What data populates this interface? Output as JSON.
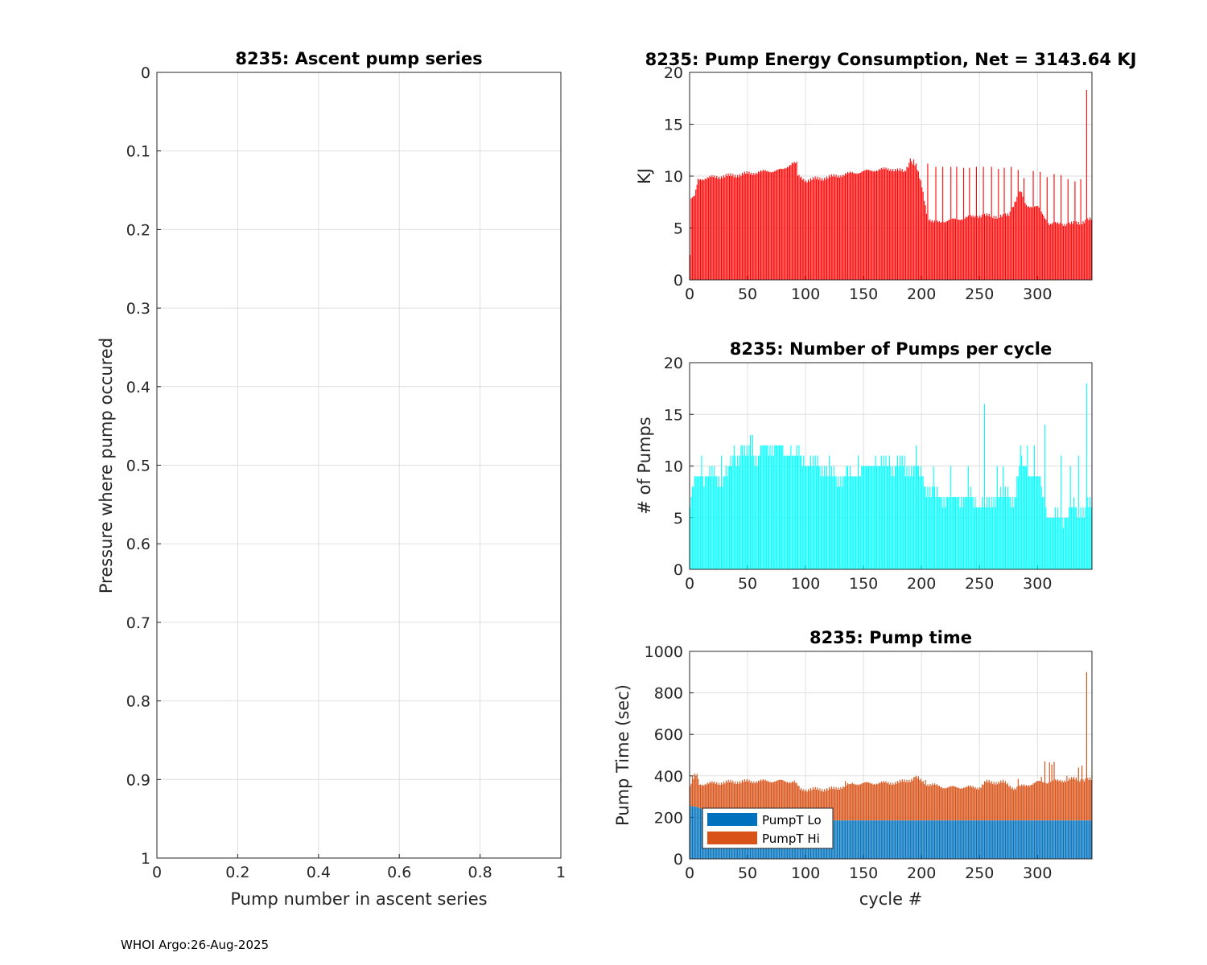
{
  "footer": {
    "text": "WHOI Argo:26-Aug-2025"
  },
  "colors": {
    "energy": "#ff0000",
    "pumps": "#00ffff",
    "lo": "#0072bd",
    "hi": "#d95319"
  },
  "chart_data": [
    {
      "id": "ascent",
      "type": "line",
      "title": "8235: Ascent pump series",
      "xlabel": "Pump number in ascent series",
      "ylabel": "Pressure where pump occured",
      "xlim": [
        0,
        1
      ],
      "ylim": [
        0,
        1
      ],
      "y_reversed": true,
      "xticks": [
        "0",
        "0.2",
        "0.4",
        "0.6",
        "0.8",
        "1"
      ],
      "yticks": [
        "0",
        "0.1",
        "0.2",
        "0.3",
        "0.4",
        "0.5",
        "0.6",
        "0.7",
        "0.8",
        "0.9",
        "1"
      ],
      "series": []
    },
    {
      "id": "energy",
      "type": "bar",
      "title": "8235: Pump Energy Consumption,  Net = 3143.64 KJ",
      "xlabel": "",
      "ylabel": "KJ",
      "xlim": [
        0,
        347
      ],
      "ylim": [
        0,
        20
      ],
      "xticks": [
        "0",
        "50",
        "100",
        "150",
        "200",
        "250",
        "300"
      ],
      "yticks": [
        "0",
        "5",
        "10",
        "15",
        "20"
      ],
      "profile": [
        [
          0,
          2.4
        ],
        [
          1,
          7.8
        ],
        [
          4,
          8.0
        ],
        [
          7,
          9.7
        ],
        [
          20,
          9.9
        ],
        [
          40,
          10.1
        ],
        [
          60,
          10.4
        ],
        [
          80,
          10.6
        ],
        [
          88,
          11.3
        ],
        [
          92,
          11.2
        ],
        [
          93,
          10.0
        ],
        [
          100,
          9.6
        ],
        [
          120,
          9.9
        ],
        [
          140,
          10.3
        ],
        [
          160,
          10.6
        ],
        [
          175,
          10.7
        ],
        [
          185,
          10.4
        ],
        [
          190,
          11.5
        ],
        [
          195,
          11.0
        ],
        [
          200,
          9.0
        ],
        [
          205,
          6.0
        ],
        [
          210,
          5.5
        ],
        [
          250,
          6.2
        ],
        [
          270,
          6.1
        ],
        [
          275,
          6.3
        ],
        [
          280,
          7.5
        ],
        [
          285,
          8.5
        ],
        [
          290,
          7.2
        ],
        [
          300,
          7.0
        ],
        [
          310,
          5.4
        ],
        [
          330,
          5.4
        ],
        [
          346,
          5.8
        ]
      ],
      "spikes": [
        [
          190,
          11.7
        ],
        [
          193,
          11.6
        ],
        [
          205,
          11.2
        ],
        [
          212,
          10.9
        ],
        [
          218,
          10.9
        ],
        [
          225,
          10.9
        ],
        [
          230,
          10.9
        ],
        [
          236,
          10.8
        ],
        [
          241,
          10.8
        ],
        [
          247,
          10.9
        ],
        [
          253,
          10.9
        ],
        [
          260,
          10.9
        ],
        [
          266,
          10.7
        ],
        [
          271,
          10.8
        ],
        [
          277,
          10.9
        ],
        [
          283,
          10.6
        ],
        [
          288,
          9.8
        ],
        [
          296,
          10.5
        ],
        [
          302,
          10.4
        ],
        [
          308,
          9.9
        ],
        [
          314,
          10.2
        ],
        [
          320,
          10.1
        ],
        [
          326,
          9.7
        ],
        [
          332,
          9.5
        ],
        [
          337,
          9.7
        ],
        [
          342,
          18.3
        ]
      ]
    },
    {
      "id": "pumps",
      "type": "bar",
      "title": "8235: Number of Pumps per cycle",
      "xlabel": "",
      "ylabel": "# of Pumps",
      "xlim": [
        0,
        347
      ],
      "ylim": [
        0,
        20
      ],
      "xticks": [
        "0",
        "50",
        "100",
        "150",
        "200",
        "250",
        "300"
      ],
      "yticks": [
        "0",
        "5",
        "10",
        "15",
        "20"
      ],
      "profile": [
        [
          0,
          6
        ],
        [
          3,
          8
        ],
        [
          6,
          9
        ],
        [
          30,
          9
        ],
        [
          35,
          10
        ],
        [
          45,
          11
        ],
        [
          55,
          11
        ],
        [
          60,
          11
        ],
        [
          70,
          12
        ],
        [
          90,
          11
        ],
        [
          110,
          10
        ],
        [
          125,
          9
        ],
        [
          140,
          9
        ],
        [
          150,
          10
        ],
        [
          165,
          10
        ],
        [
          180,
          10
        ],
        [
          195,
          10
        ],
        [
          205,
          8
        ],
        [
          215,
          7
        ],
        [
          240,
          7
        ],
        [
          255,
          6
        ],
        [
          260,
          7
        ],
        [
          280,
          7
        ],
        [
          285,
          10
        ],
        [
          300,
          9
        ],
        [
          305,
          7
        ],
        [
          310,
          5
        ],
        [
          320,
          5
        ],
        [
          335,
          6
        ],
        [
          346,
          6
        ]
      ],
      "spikes": [
        [
          10,
          11
        ],
        [
          27,
          11
        ],
        [
          38,
          12
        ],
        [
          44,
          12
        ],
        [
          52,
          13
        ],
        [
          54,
          13
        ],
        [
          62,
          12
        ],
        [
          87,
          12
        ],
        [
          95,
          11
        ],
        [
          120,
          11
        ],
        [
          135,
          10
        ],
        [
          145,
          11
        ],
        [
          160,
          11
        ],
        [
          172,
          11
        ],
        [
          195,
          12
        ],
        [
          210,
          10
        ],
        [
          225,
          10
        ],
        [
          240,
          10
        ],
        [
          254,
          16
        ],
        [
          265,
          10
        ],
        [
          270,
          10
        ],
        [
          285,
          12
        ],
        [
          291,
          12
        ],
        [
          297,
          12
        ],
        [
          306,
          14
        ],
        [
          320,
          11
        ],
        [
          328,
          10
        ],
        [
          335,
          11
        ],
        [
          342,
          18
        ]
      ]
    },
    {
      "id": "pumptime",
      "type": "bar",
      "title": "8235: Pump time",
      "xlabel": "cycle #",
      "ylabel": "Pump Time (sec)",
      "xlim": [
        0,
        347
      ],
      "ylim": [
        0,
        1000
      ],
      "xticks": [
        "0",
        "50",
        "100",
        "150",
        "200",
        "250",
        "300"
      ],
      "yticks": [
        "0",
        "200",
        "400",
        "600",
        "800",
        "1000"
      ],
      "legend": [
        "PumpT Lo",
        "PumpT Hi"
      ],
      "lo_profile": [
        [
          0,
          255
        ],
        [
          6,
          250
        ],
        [
          10,
          240
        ],
        [
          50,
          238
        ],
        [
          80,
          235
        ],
        [
          95,
          220
        ],
        [
          125,
          185
        ],
        [
          346,
          185
        ]
      ],
      "total_profile": [
        [
          0,
          350
        ],
        [
          6,
          405
        ],
        [
          8,
          360
        ],
        [
          20,
          365
        ],
        [
          40,
          372
        ],
        [
          60,
          375
        ],
        [
          80,
          375
        ],
        [
          90,
          372
        ],
        [
          95,
          335
        ],
        [
          110,
          335
        ],
        [
          125,
          338
        ],
        [
          140,
          362
        ],
        [
          160,
          365
        ],
        [
          180,
          368
        ],
        [
          195,
          390
        ],
        [
          205,
          360
        ],
        [
          220,
          345
        ],
        [
          240,
          345
        ],
        [
          250,
          345
        ],
        [
          255,
          370
        ],
        [
          270,
          370
        ],
        [
          280,
          340
        ],
        [
          290,
          355
        ],
        [
          300,
          370
        ],
        [
          310,
          370
        ],
        [
          330,
          385
        ],
        [
          346,
          380
        ]
      ],
      "spikes": [
        [
          2,
          400
        ],
        [
          4,
          412
        ],
        [
          6,
          410
        ],
        [
          134,
          375
        ],
        [
          138,
          360
        ],
        [
          194,
          395
        ],
        [
          197,
          398
        ],
        [
          203,
          380
        ],
        [
          283,
          385
        ],
        [
          303,
          395
        ],
        [
          306,
          470
        ],
        [
          310,
          465
        ],
        [
          312,
          455
        ],
        [
          314,
          468
        ],
        [
          325,
          400
        ],
        [
          335,
          440
        ],
        [
          338,
          450
        ],
        [
          342,
          900
        ]
      ]
    }
  ]
}
